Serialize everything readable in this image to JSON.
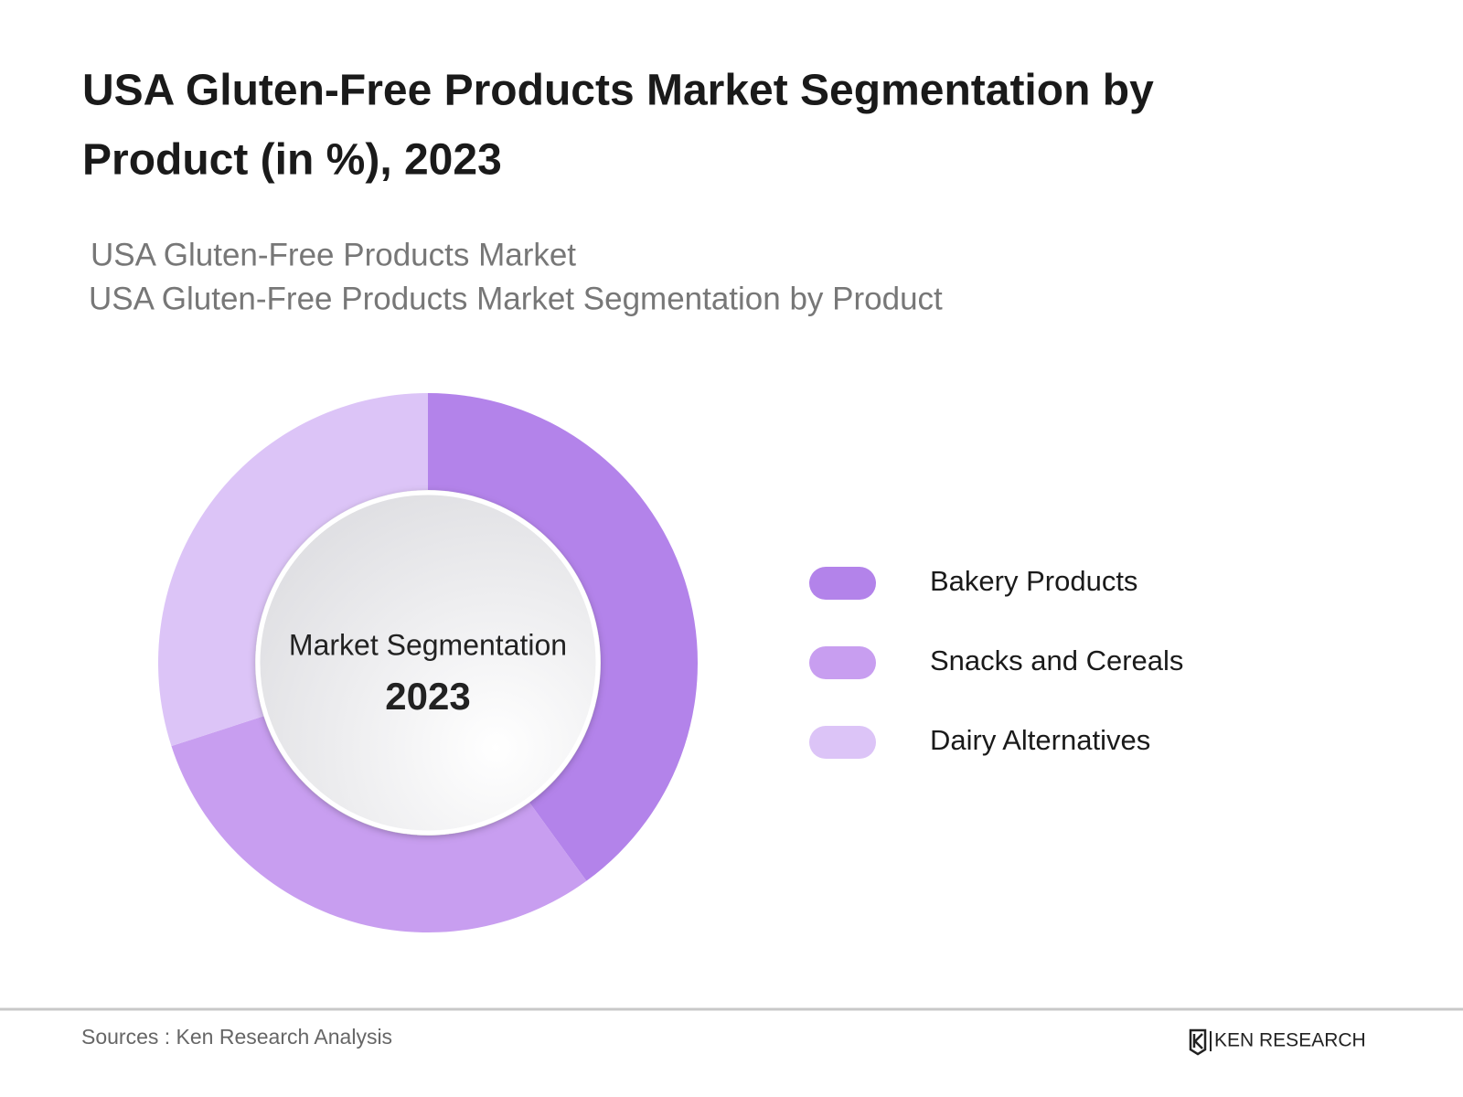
{
  "chart_data": {
    "type": "donut",
    "title": [
      "USA Gluten-Free Products Market Segmentation by",
      "Product (in %), 2023"
    ],
    "subtitle": [
      "USA Gluten-Free Products Market",
      "USA Gluten-Free Products Market Segmentation by Product"
    ],
    "center_label": "Market Segmentation",
    "center_year": "2023",
    "categories": [
      "Bakery Products",
      "Snacks and Cereals",
      "Dairy Alternatives"
    ],
    "values": [
      40,
      30,
      30
    ],
    "colors": [
      "#b383ea",
      "#c89ef0",
      "#dcc4f7"
    ],
    "legend": "right",
    "source": "Sources : Ken Research Analysis",
    "logo": "KEN RESEARCH"
  }
}
